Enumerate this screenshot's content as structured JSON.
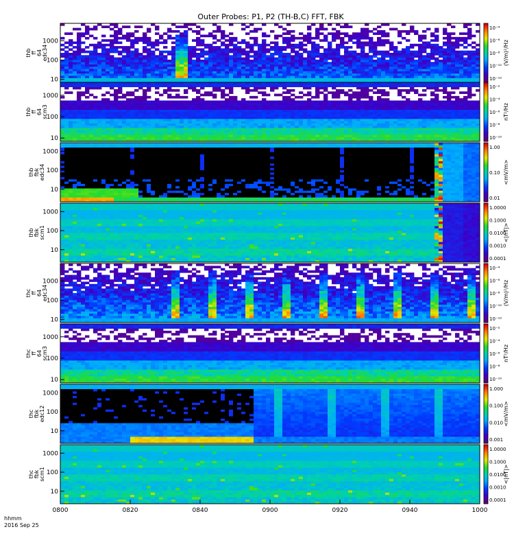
{
  "chart_data": {
    "type": "heatmap",
    "title": "Outer Probes: P1, P2 (TH-B,C) FFT, FBK",
    "xlabel": "hhmm",
    "date_label": "2016 Sep 25",
    "x_ticks": [
      "0800",
      "0820",
      "0840",
      "0900",
      "0920",
      "0940",
      "1000"
    ],
    "x_range_minutes": [
      0,
      120
    ],
    "panels": [
      {
        "id": "thb-ff-e",
        "ylabel_lines": [
          "thb",
          "ff",
          "64",
          "edc34"
        ],
        "y_ticks": [
          "10",
          "100",
          "1000"
        ],
        "y_tick_values": [
          10,
          100,
          1000
        ],
        "y_range_hz": [
          7,
          8000
        ],
        "cbar_label": "(V/m)²/Hz",
        "cbar_ticks": [
          "10⁻⁴",
          "10⁻⁶",
          "10⁻⁸",
          "10⁻¹⁰",
          "10⁻¹²"
        ],
        "style": "fft-e"
      },
      {
        "id": "thb-ff-b",
        "ylabel_lines": [
          "thb",
          "ff",
          "64",
          "scm3"
        ],
        "y_ticks": [
          "10",
          "100",
          "1000"
        ],
        "y_tick_values": [
          10,
          100,
          1000
        ],
        "y_range_hz": [
          7,
          4000
        ],
        "cbar_label": "nT²/Hz",
        "cbar_ticks": [
          "10⁻²",
          "10⁻⁴",
          "10⁻⁶",
          "10⁻⁸",
          "10⁻¹⁰"
        ],
        "style": "fft-b"
      },
      {
        "id": "thb-fb-e",
        "ylabel_lines": [
          "thb",
          "fbk",
          "edc34"
        ],
        "y_ticks": [
          "10",
          "100",
          "1000"
        ],
        "y_tick_values": [
          10,
          100,
          1000
        ],
        "y_range_hz": [
          2.2,
          2800
        ],
        "cbar_label": "<mV/m>",
        "cbar_ticks": [
          "1.00",
          "0.10",
          "0.01"
        ],
        "style": "fbk-e-b"
      },
      {
        "id": "thb-fb-b",
        "ylabel_lines": [
          "thb",
          "fbk",
          "scm1"
        ],
        "y_ticks": [
          "10",
          "100",
          "1000"
        ],
        "y_tick_values": [
          10,
          100,
          1000
        ],
        "y_range_hz": [
          2.2,
          2800
        ],
        "cbar_label": "<|nT|>",
        "cbar_ticks": [
          "1.0000",
          "0.1000",
          "0.0100",
          "0.0010",
          "0.0001"
        ],
        "style": "fbk-b-b"
      },
      {
        "id": "thc-ff-e",
        "ylabel_lines": [
          "thc",
          "ff",
          "64",
          "edc34"
        ],
        "y_ticks": [
          "10",
          "100",
          "1000"
        ],
        "y_tick_values": [
          10,
          100,
          1000
        ],
        "y_range_hz": [
          7,
          8000
        ],
        "cbar_label": "(V/m)²/Hz",
        "cbar_ticks": [
          "10⁻⁴",
          "10⁻⁶",
          "10⁻⁸",
          "10⁻¹⁰",
          "10⁻¹²"
        ],
        "style": "fft-e-c"
      },
      {
        "id": "thc-ff-b",
        "ylabel_lines": [
          "thc",
          "ff",
          "64",
          "scm3"
        ],
        "y_ticks": [
          "10",
          "100",
          "1000"
        ],
        "y_tick_values": [
          10,
          100,
          1000
        ],
        "y_range_hz": [
          7,
          4000
        ],
        "cbar_label": "nT²/Hz",
        "cbar_ticks": [
          "10⁻²",
          "10⁻⁴",
          "10⁻⁶",
          "10⁻⁸",
          "10⁻¹⁰"
        ],
        "style": "fft-b-c"
      },
      {
        "id": "thc-fb-e",
        "ylabel_lines": [
          "thc",
          "fbk",
          "edc12"
        ],
        "y_ticks": [
          "10",
          "100",
          "1000"
        ],
        "y_tick_values": [
          10,
          100,
          1000
        ],
        "y_range_hz": [
          2.2,
          2800
        ],
        "cbar_label": "<mV/m>",
        "cbar_ticks": [
          "1.000",
          "0.100",
          "0.010",
          "0.001"
        ],
        "style": "fbk-e-c"
      },
      {
        "id": "thc-fb-b",
        "ylabel_lines": [
          "thc",
          "fbk",
          "scm1"
        ],
        "y_ticks": [
          "10",
          "100",
          "1000"
        ],
        "y_tick_values": [
          10,
          100,
          1000
        ],
        "y_range_hz": [
          2.2,
          2800
        ],
        "cbar_label": "<|nT|>",
        "cbar_ticks": [
          "1.0000",
          "0.1000",
          "0.0100",
          "0.0010",
          "0.0001"
        ],
        "style": "fbk-b-c"
      }
    ]
  }
}
